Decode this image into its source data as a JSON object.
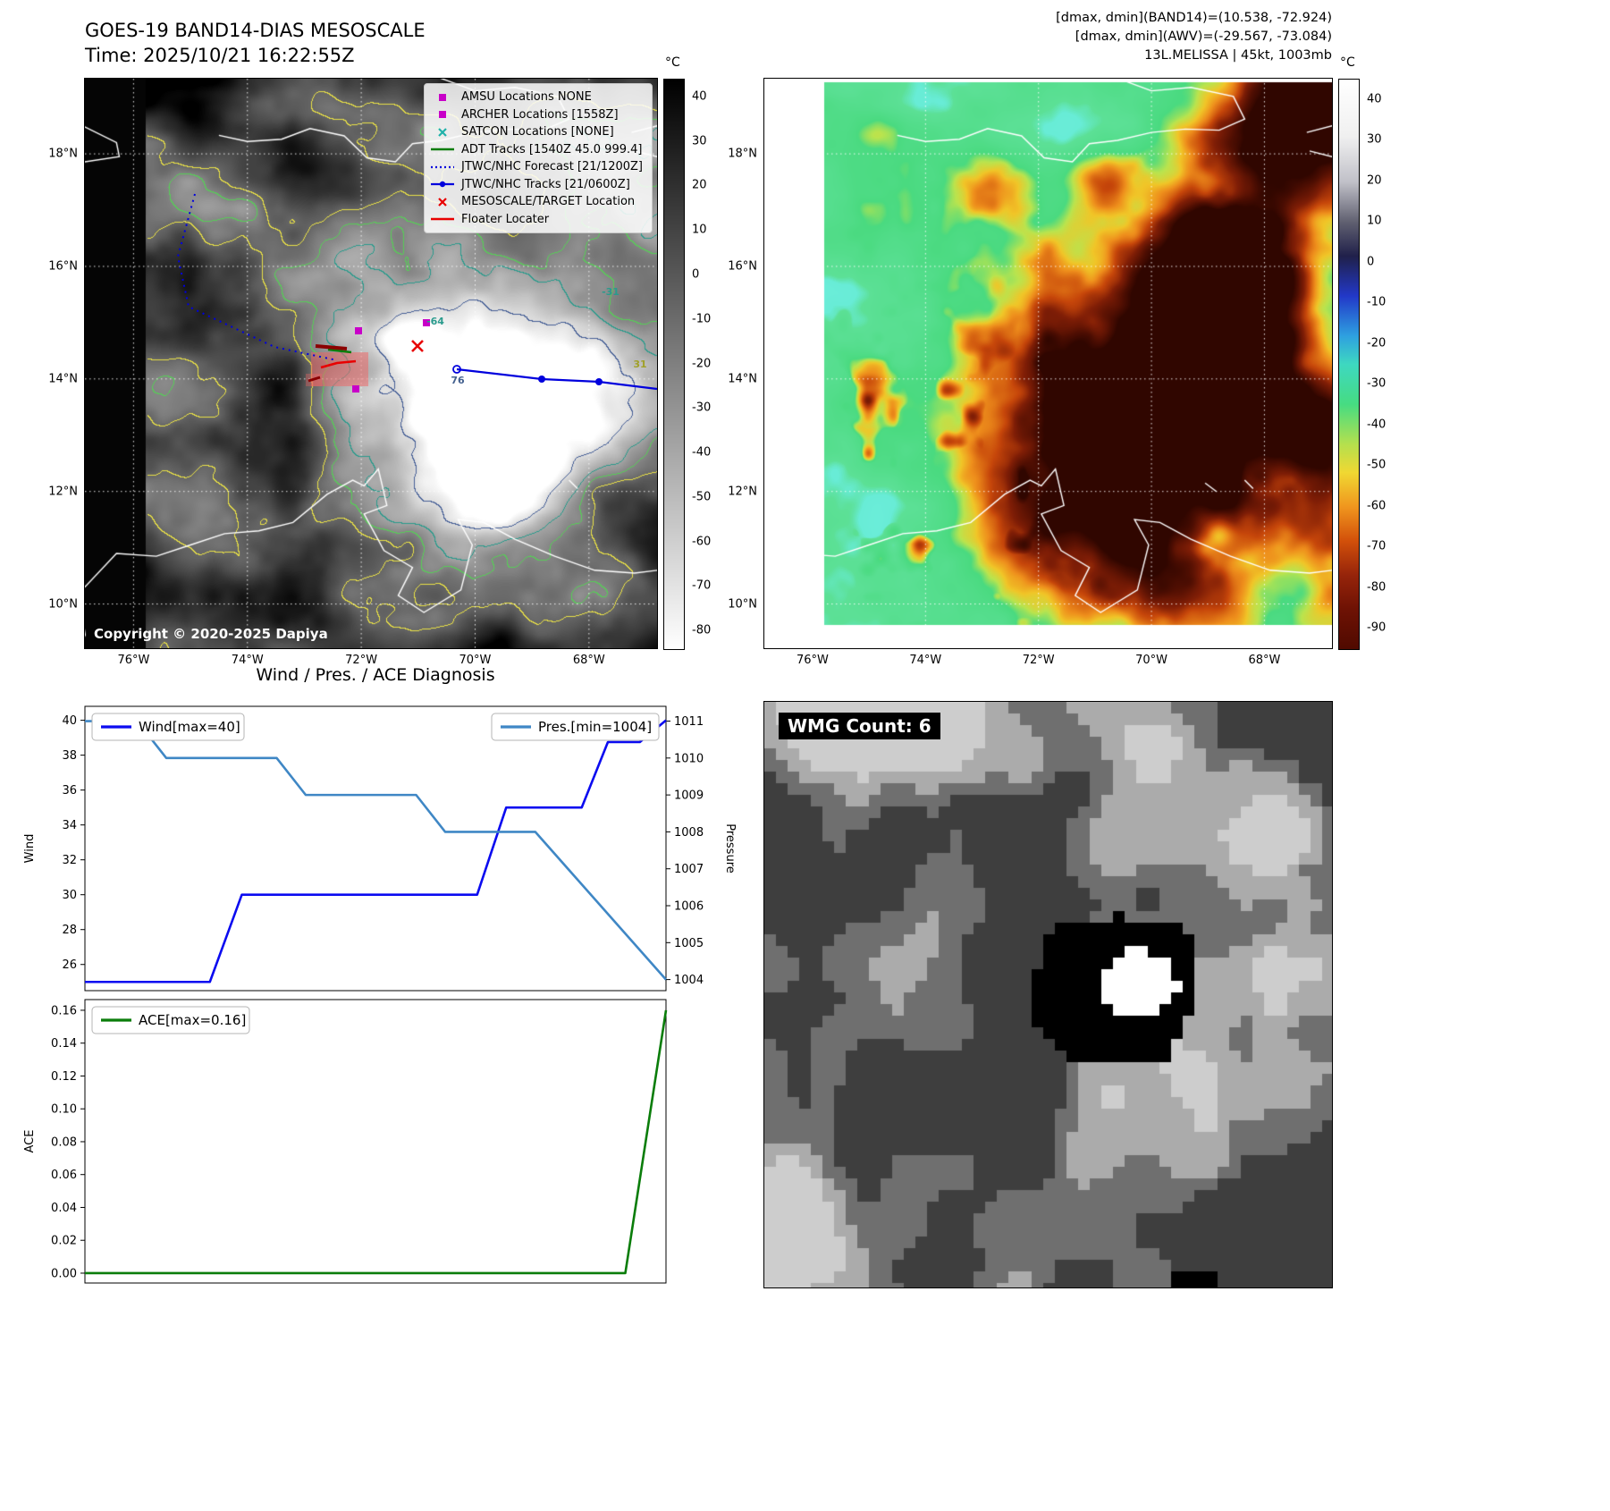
{
  "left_map": {
    "title": "GOES-19 BAND14-DIAS MESOSCALE",
    "time": "Time: 2025/10/21 16:22:55Z",
    "copyright": "Copyright © 2020-2025 Dapiya",
    "legend": [
      {
        "label": "AMSU Locations NONE",
        "marker": "square",
        "color": "#c800c8"
      },
      {
        "label": "ARCHER Locations [1558Z]",
        "marker": "square",
        "color": "#c800c8"
      },
      {
        "label": "SATCON Locations [NONE]",
        "marker": "x",
        "color": "#20b2aa"
      },
      {
        "label": "ADT Tracks [1540Z 45.0 999.4]",
        "marker": "line",
        "color": "#0a7d0a"
      },
      {
        "label": "JTWC/NHC Forecast [21/1200Z]",
        "marker": "dotted",
        "color": "#0000dd"
      },
      {
        "label": "JTWC/NHC Tracks [21/0600Z]",
        "marker": "line-dot",
        "color": "#0000dd"
      },
      {
        "label": "MESOSCALE/TARGET Location",
        "marker": "x",
        "color": "#e80000"
      },
      {
        "label": "Floater Locater",
        "marker": "line",
        "color": "#e80000"
      }
    ],
    "lat_ticks": [
      "18°N",
      "16°N",
      "14°N",
      "12°N",
      "10°N"
    ],
    "lon_ticks": [
      "76°W",
      "74°W",
      "72°W",
      "70°W",
      "68°W"
    ],
    "colorbar": {
      "unit": "°C",
      "ticks": [
        "40",
        "30",
        "20",
        "10",
        "0",
        "-10",
        "-20",
        "-30",
        "-40",
        "-50",
        "-60",
        "-70",
        "-80"
      ],
      "gradient": [
        "#000000 0%",
        "#ffffff 100%"
      ]
    },
    "contour_labels": [
      "-31",
      "-64",
      "76",
      "31"
    ]
  },
  "right_map": {
    "header_lines": [
      "[dmax, dmin](BAND14)=(10.538, -72.924)",
      "[dmax, dmin](AWV)=(-29.567, -73.084)",
      "13L.MELISSA | 45kt, 1003mb"
    ],
    "lat_ticks": [
      "18°N",
      "16°N",
      "14°N",
      "12°N",
      "10°N"
    ],
    "lon_ticks": [
      "76°W",
      "74°W",
      "72°W",
      "70°W",
      "68°W"
    ],
    "colorbar": {
      "unit": "°C",
      "ticks": [
        "40",
        "30",
        "20",
        "10",
        "0",
        "-10",
        "-20",
        "-30",
        "-40",
        "-50",
        "-60",
        "-70",
        "-80",
        "-90"
      ],
      "gradient": [
        "#ffffff 0%",
        "#f0f0f0 10%",
        "#c0c0c8 18%",
        "#606070 25%",
        "#20204a 31%",
        "#2238c8 38%",
        "#2ea0e0 45%",
        "#3ed8c0 50%",
        "#46dc82 57%",
        "#b4e04e 64%",
        "#f0d832 69%",
        "#f0961e 75%",
        "#d2500a 81%",
        "#96240a 87%",
        "#6e1204 93%",
        "#500a00 100%"
      ]
    }
  },
  "charts": {
    "title": "Wind / Pres. / ACE Diagnosis"
  },
  "chart_data": [
    {
      "type": "line",
      "title": "Wind / Pres. / ACE Diagnosis",
      "series": [
        {
          "name": "Wind[max=40]",
          "axis": "left",
          "color": "#0b0bf0",
          "x": [
            0,
            0.215,
            0.27,
            0.675,
            0.725,
            0.855,
            0.9,
            0.955,
            1.0
          ],
          "y": [
            25,
            25,
            30,
            30,
            35,
            35,
            38.75,
            38.75,
            40
          ]
        },
        {
          "name": "Pres.[min=1004]",
          "axis": "right",
          "color": "#3f87c5",
          "x": [
            0,
            0.09,
            0.14,
            0.33,
            0.38,
            0.57,
            0.62,
            0.775,
            1.0
          ],
          "y": [
            1011,
            1011,
            1010,
            1010,
            1009,
            1009,
            1008,
            1008,
            1004
          ]
        }
      ],
      "left_axis": {
        "label": "Wind",
        "ticks": [
          26,
          28,
          30,
          32,
          34,
          36,
          38,
          40
        ],
        "tick_labels": [
          "26",
          "28",
          "30",
          "32",
          "34",
          "36",
          "38",
          "40"
        ],
        "range": [
          24.5,
          40.8
        ]
      },
      "right_axis": {
        "label": "Pressure",
        "ticks": [
          1004,
          1005,
          1006,
          1007,
          1008,
          1009,
          1010,
          1011
        ],
        "tick_labels": [
          "1004",
          "1005",
          "1006",
          "1007",
          "1008",
          "1009",
          "1010",
          "1011"
        ],
        "range": [
          1003.7,
          1011.4
        ]
      },
      "legend_position": "top"
    },
    {
      "type": "line",
      "series": [
        {
          "name": "ACE[max=0.16]",
          "axis": "left",
          "color": "#0a7d0a",
          "x": [
            0,
            0.93,
            1.0
          ],
          "y": [
            0,
            0,
            0.16
          ]
        }
      ],
      "left_axis": {
        "label": "ACE",
        "ticks": [
          0,
          0.02,
          0.04,
          0.06,
          0.08,
          0.1,
          0.12,
          0.14,
          0.16
        ],
        "tick_labels": [
          "0.00",
          "0.02",
          "0.04",
          "0.06",
          "0.08",
          "0.10",
          "0.12",
          "0.14",
          "0.16"
        ],
        "range": [
          -0.006,
          0.1665
        ]
      },
      "legend_position": "top-left"
    }
  ],
  "wmg": {
    "label": "WMG Count: 6"
  }
}
